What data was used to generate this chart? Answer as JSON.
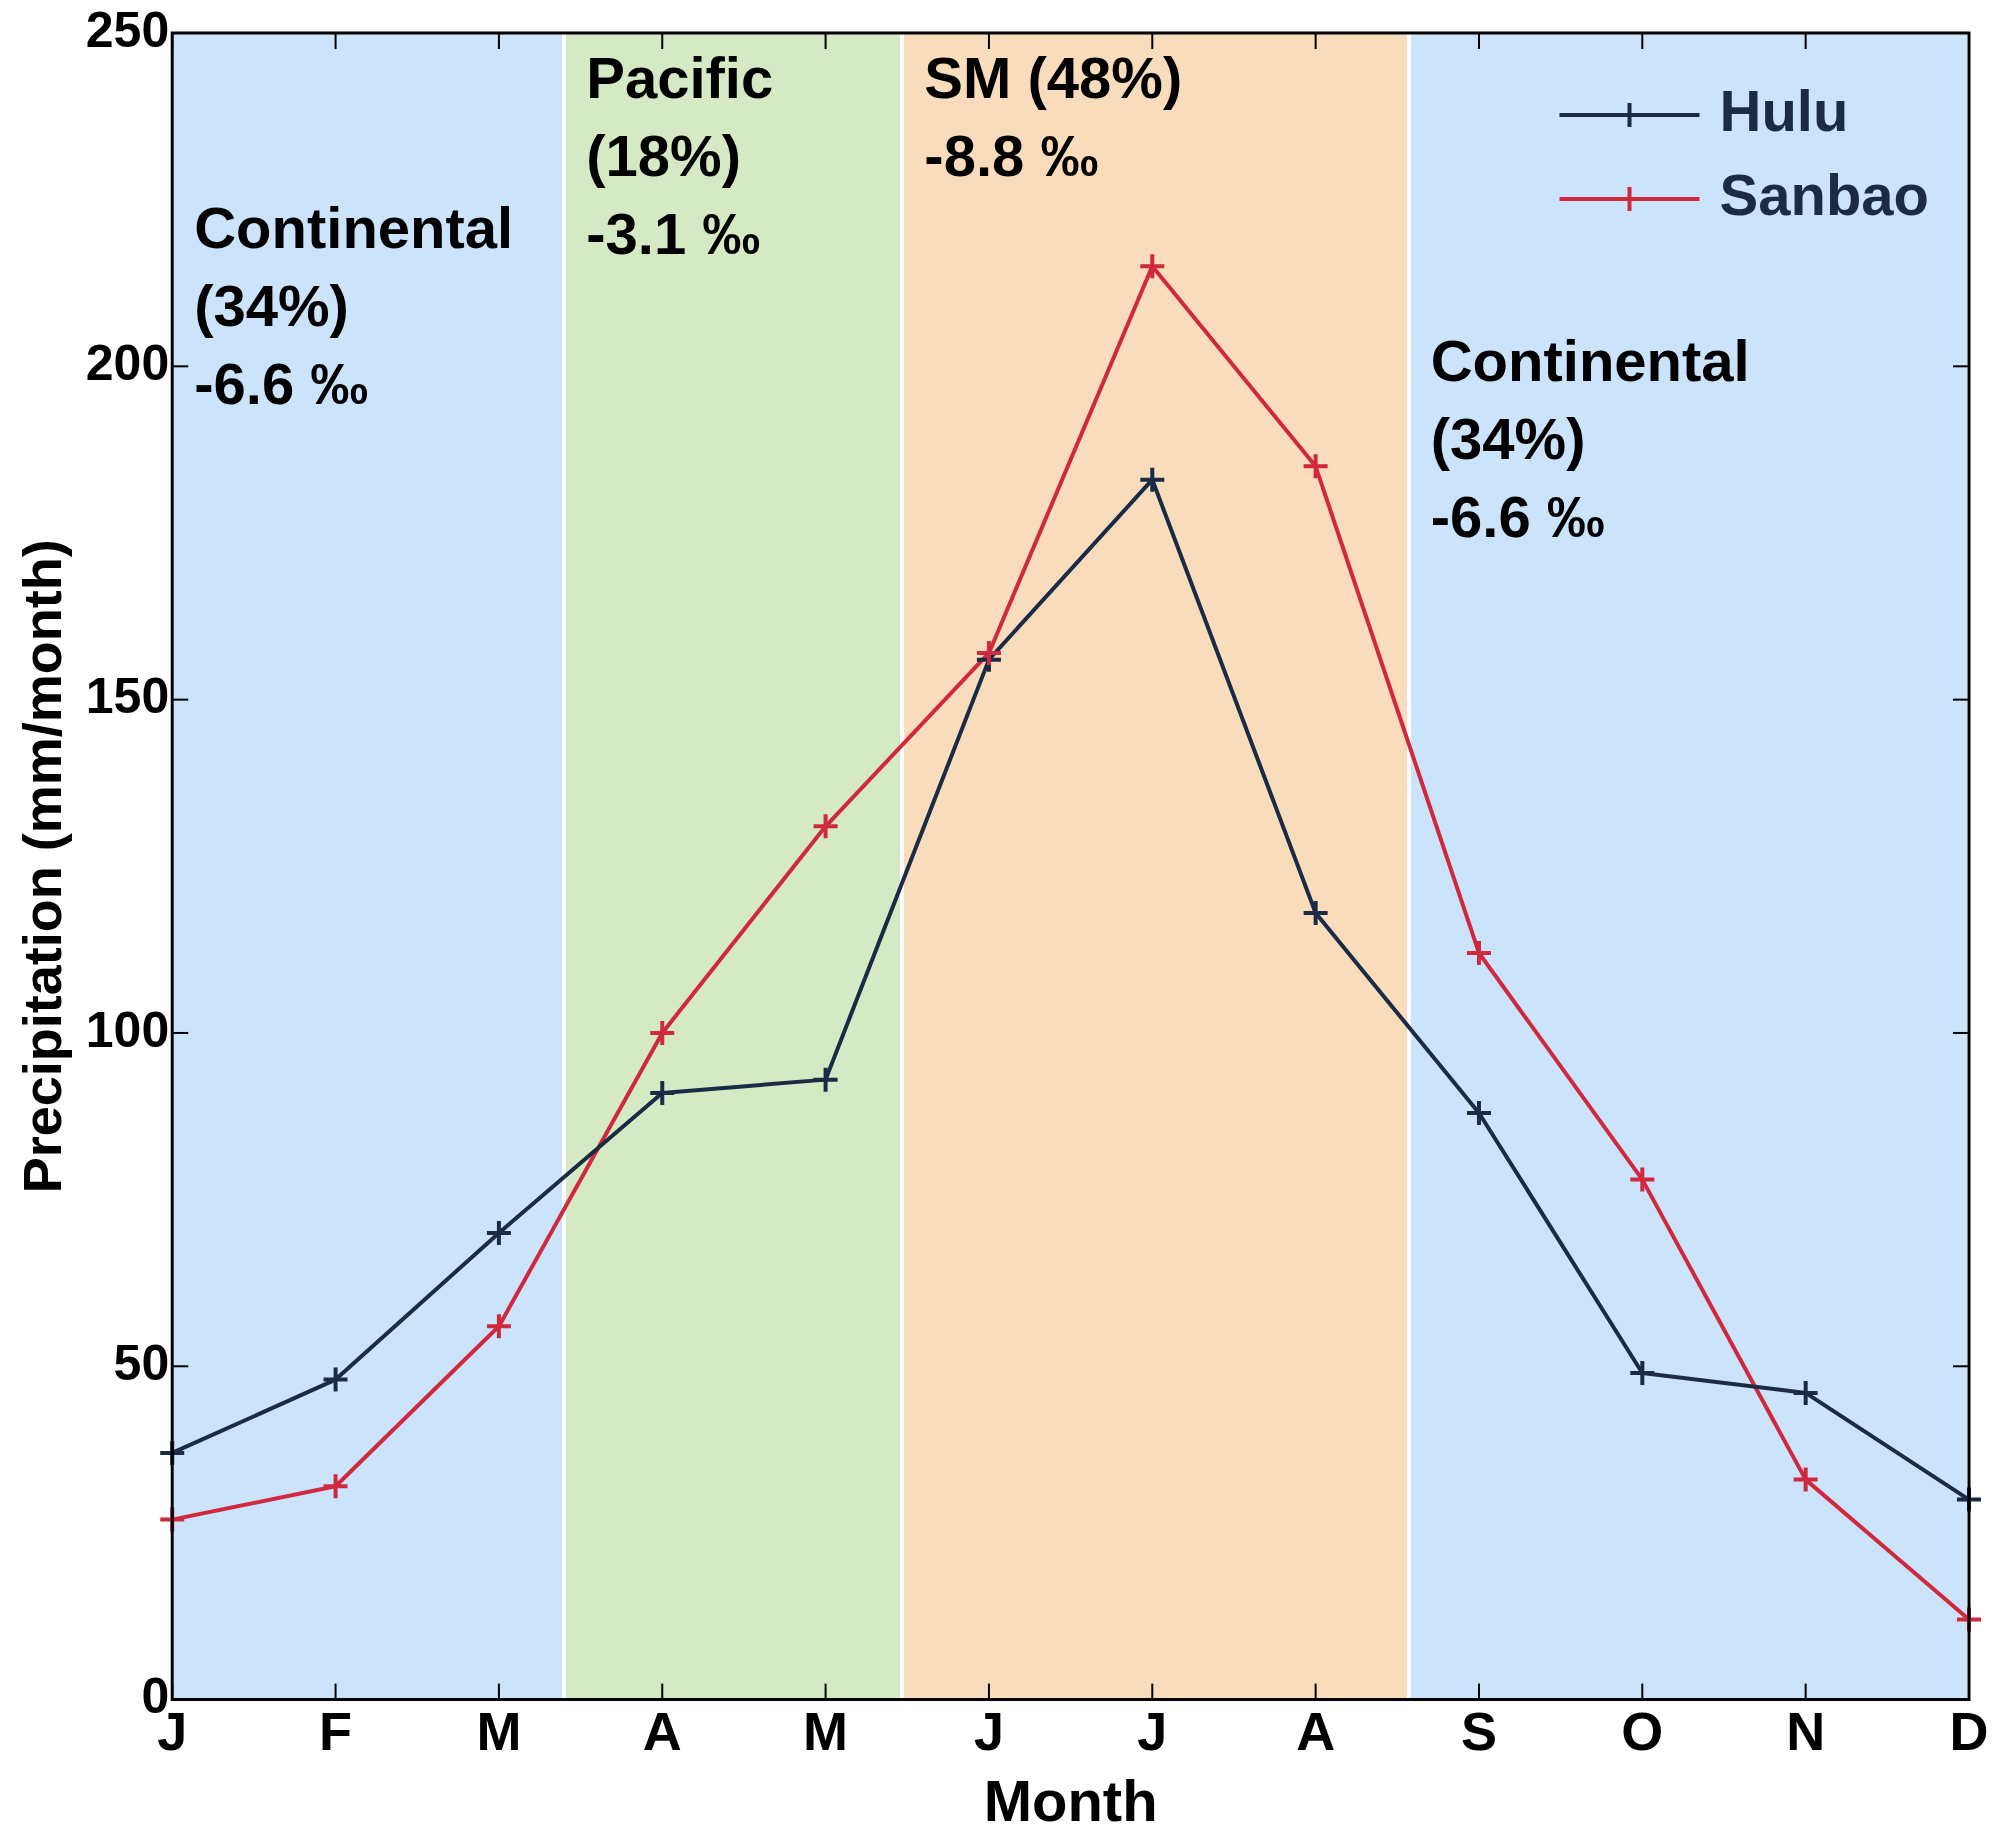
{
  "chart_data": {
    "type": "line",
    "xlabel": "Month",
    "ylabel": "Precipitation (mm/month)",
    "categories": [
      "J",
      "F",
      "M",
      "A",
      "M",
      "J",
      "J",
      "A",
      "S",
      "O",
      "N",
      "D"
    ],
    "ylim": [
      0,
      250
    ],
    "yticks": [
      0,
      50,
      100,
      150,
      200,
      250
    ],
    "series": [
      {
        "name": "Hulu",
        "color": "#1a2b45",
        "values": [
          37,
          48,
          70,
          91,
          93,
          156,
          183,
          118,
          88,
          49,
          46,
          30
        ]
      },
      {
        "name": "Sanbao",
        "color": "#d0283c",
        "values": [
          27,
          32,
          56,
          100,
          131,
          157,
          215,
          185,
          112,
          78,
          33,
          12
        ]
      }
    ],
    "annotations": [
      "Continental\n(34%)\n-6.6 ‰",
      "Pacific\n(18%)\n-3.1 ‰",
      "SM (48%)\n-8.8 ‰",
      "Continental\n(34%)\n-6.6 ‰"
    ],
    "marker": "cross",
    "line_style": "solid",
    "legend": "top right"
  }
}
